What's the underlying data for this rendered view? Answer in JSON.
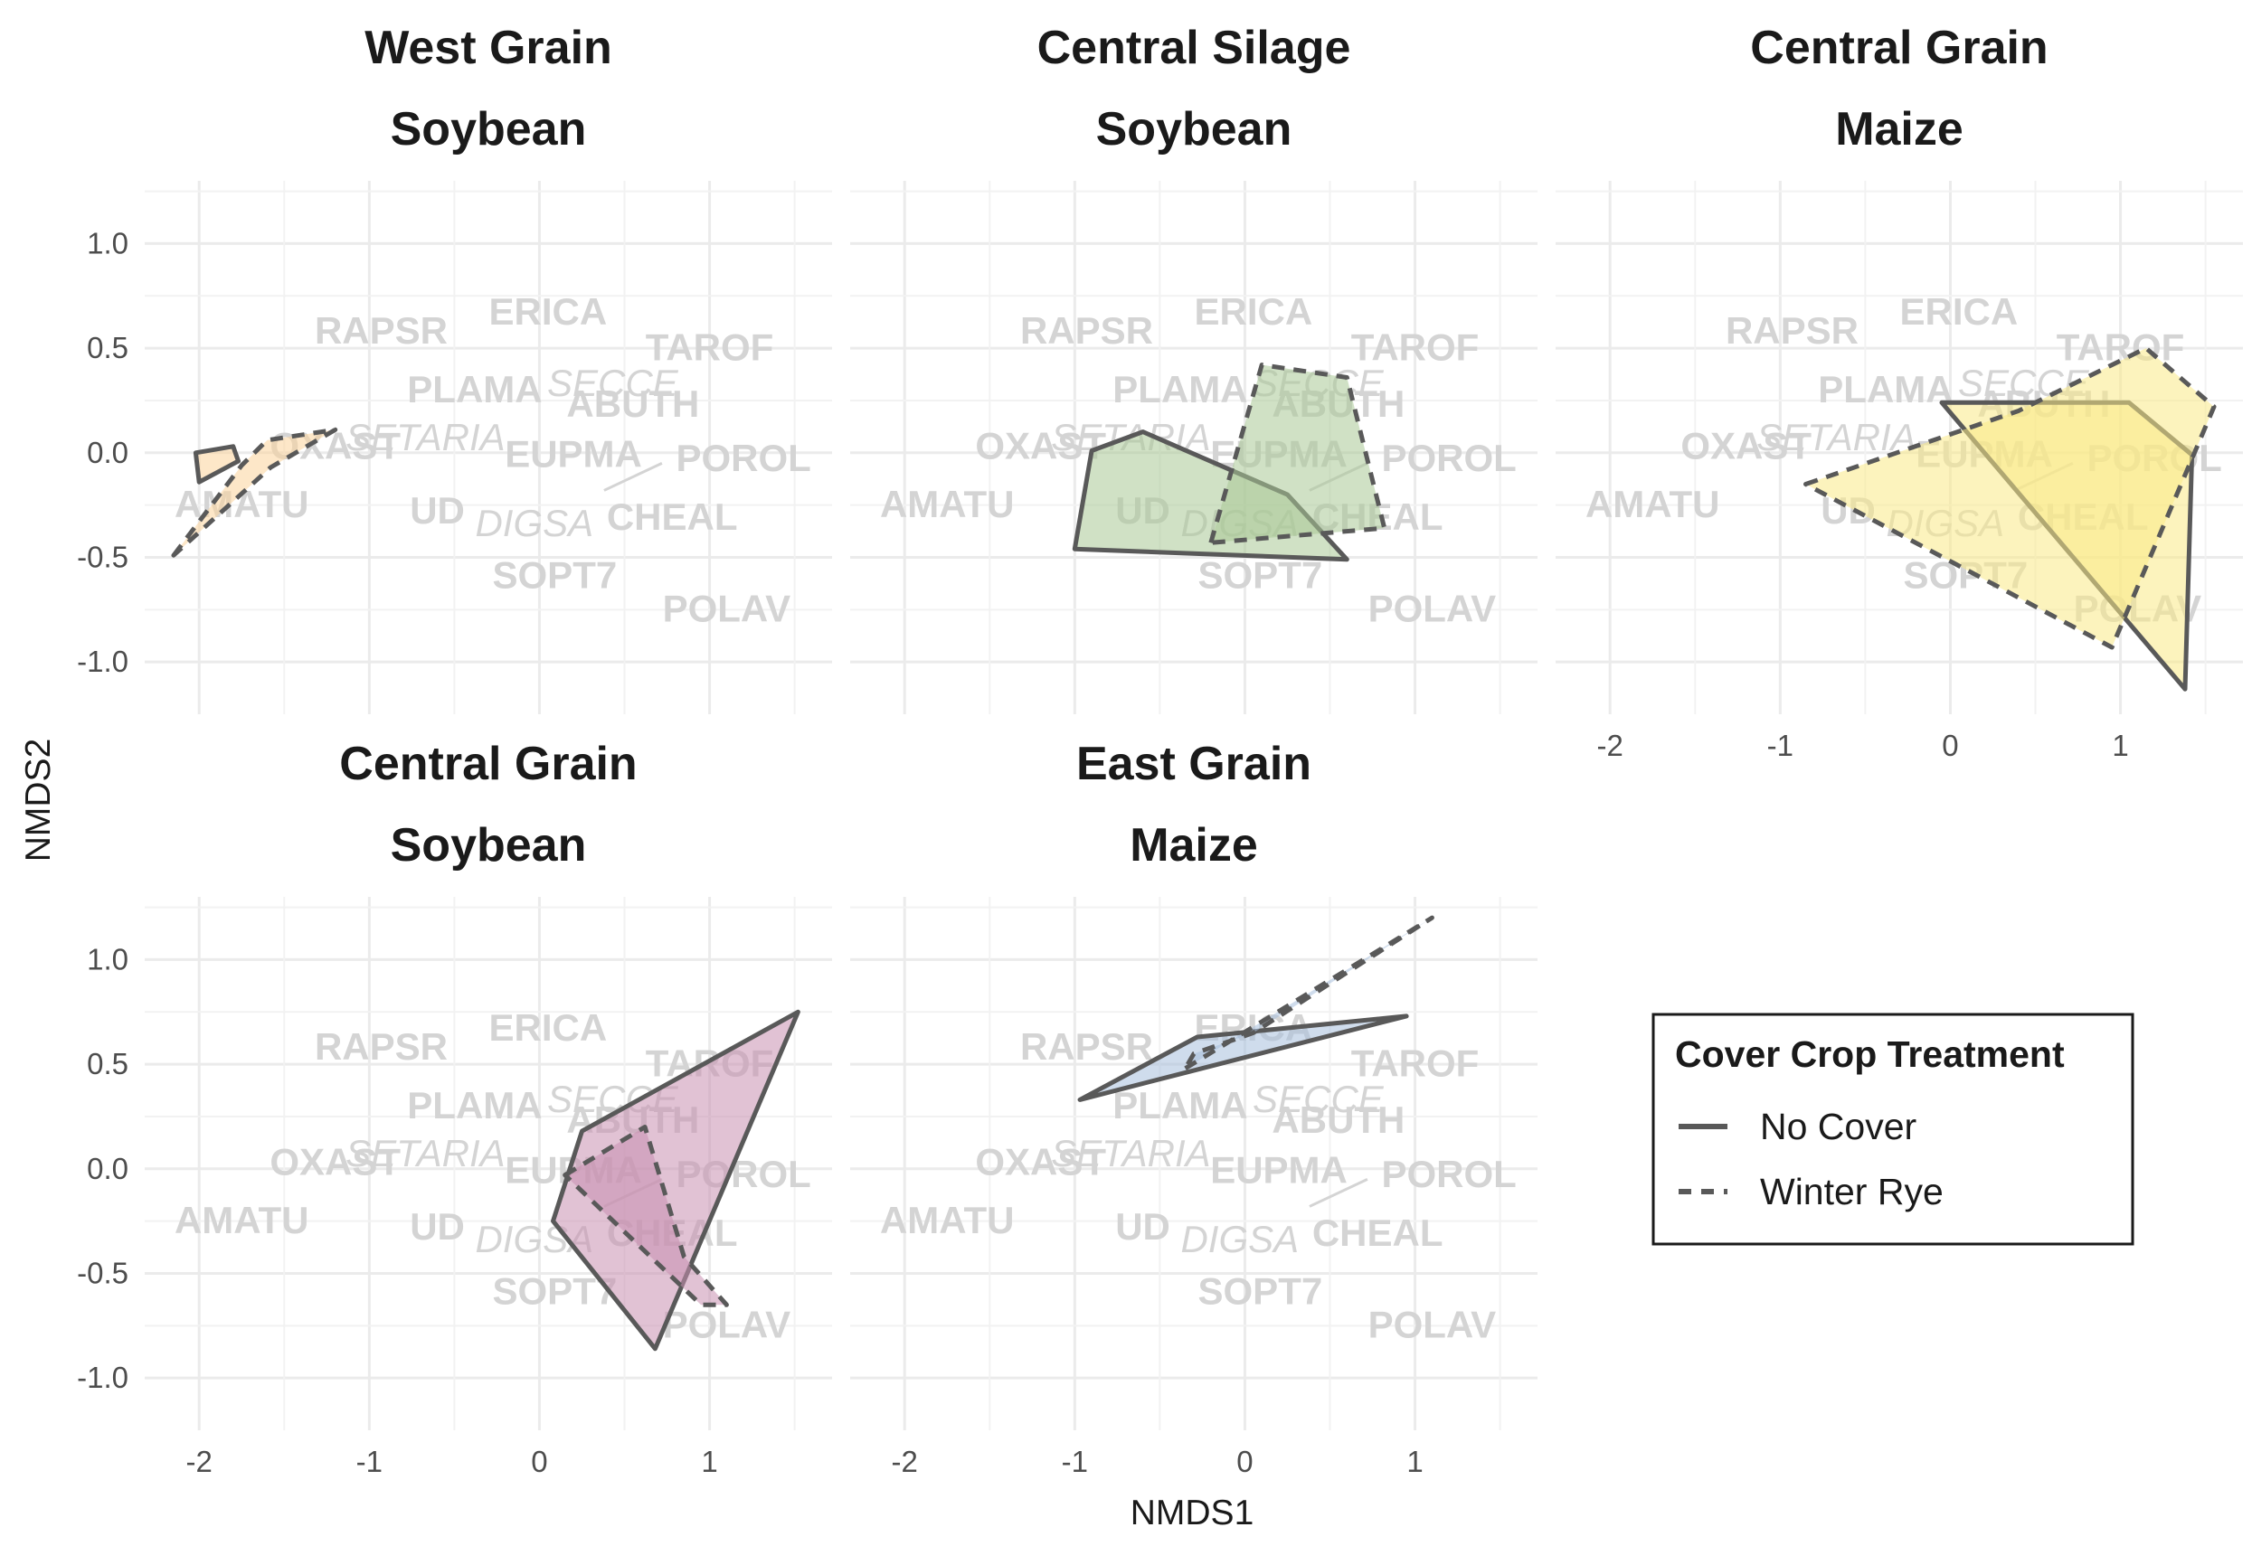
{
  "chart_data": {
    "type": "scatter",
    "subtype": "nmds-hull-facets",
    "xlabel": "NMDS1",
    "ylabel": "NMDS2",
    "xlim": [
      -2.32,
      1.72
    ],
    "ylim": [
      -1.25,
      1.3
    ],
    "x_ticks": [
      -2,
      -1,
      0,
      1
    ],
    "x_tick_labels": [
      "-2",
      "-1",
      "0",
      "1"
    ],
    "y_ticks": [
      1.0,
      0.5,
      0.0,
      -0.5,
      -1.0
    ],
    "y_tick_labels": [
      "1.0",
      "0.5",
      "0.0",
      "-0.5",
      "-1.0"
    ],
    "grid": true,
    "species": [
      {
        "label": "ERICA",
        "x": 0.05,
        "y": 0.66,
        "italic": false
      },
      {
        "label": "RAPSR",
        "x": -0.93,
        "y": 0.57,
        "italic": false
      },
      {
        "label": "TAROF",
        "x": 1.0,
        "y": 0.49,
        "italic": false
      },
      {
        "label": "SECCE",
        "x": 0.43,
        "y": 0.32,
        "italic": true
      },
      {
        "label": "PLAMA",
        "x": -0.38,
        "y": 0.29,
        "italic": false
      },
      {
        "label": "ABUTH",
        "x": 0.55,
        "y": 0.22,
        "italic": false
      },
      {
        "label": "SETARIA",
        "x": -0.67,
        "y": 0.06,
        "italic": true
      },
      {
        "label": "OXAST",
        "x": -1.2,
        "y": 0.02,
        "italic": false
      },
      {
        "label": "EUPMA",
        "x": 0.2,
        "y": -0.02,
        "italic": false
      },
      {
        "label": "POROL",
        "x": 1.2,
        "y": -0.04,
        "italic": false
      },
      {
        "label": "AMATU",
        "x": -1.75,
        "y": -0.26,
        "italic": false
      },
      {
        "label": "UD",
        "x": -0.6,
        "y": -0.29,
        "italic": false
      },
      {
        "label": "CHEAL",
        "x": 0.78,
        "y": -0.32,
        "italic": false
      },
      {
        "label": "DIGSA",
        "x": -0.03,
        "y": -0.35,
        "italic": true
      },
      {
        "label": "SOPT7",
        "x": 0.09,
        "y": -0.6,
        "italic": false
      },
      {
        "label": "POLAV",
        "x": 1.1,
        "y": -0.76,
        "italic": false
      }
    ],
    "facets": [
      {
        "title_line1": "West Grain",
        "title_line2": "Soybean",
        "color": "#fbd39b",
        "no_cover": [
          [
            -2.0,
            -0.14
          ],
          [
            -2.02,
            0.0
          ],
          [
            -1.8,
            0.03
          ],
          [
            -1.77,
            -0.04
          ]
        ],
        "winter_rye": [
          [
            -2.15,
            -0.49
          ],
          [
            -1.75,
            -0.06
          ],
          [
            -1.6,
            0.06
          ],
          [
            -1.2,
            0.11
          ],
          [
            -1.58,
            -0.07
          ]
        ]
      },
      {
        "title_line1": "Central Silage",
        "title_line2": "Soybean",
        "color": "#a9c895",
        "no_cover": [
          [
            -1.0,
            -0.46
          ],
          [
            -0.9,
            0.01
          ],
          [
            -0.6,
            0.1
          ],
          [
            0.25,
            -0.2
          ],
          [
            0.6,
            -0.51
          ]
        ],
        "winter_rye": [
          [
            -0.2,
            -0.43
          ],
          [
            0.1,
            0.42
          ],
          [
            0.6,
            0.36
          ],
          [
            0.82,
            -0.36
          ]
        ]
      },
      {
        "title_line1": "Central Grain",
        "title_line2": "Maize",
        "color": "#f9ea86",
        "no_cover": [
          [
            -0.05,
            0.24
          ],
          [
            1.05,
            0.24
          ],
          [
            1.42,
            -0.01
          ],
          [
            1.38,
            -1.13
          ]
        ],
        "winter_rye": [
          [
            -0.85,
            -0.15
          ],
          [
            0.4,
            0.2
          ],
          [
            1.15,
            0.5
          ],
          [
            1.55,
            0.22
          ],
          [
            0.95,
            -0.93
          ]
        ]
      },
      {
        "title_line1": "Central Grain",
        "title_line2": "Soybean",
        "color": "#c98fb1",
        "no_cover": [
          [
            0.08,
            -0.25
          ],
          [
            0.25,
            0.18
          ],
          [
            1.52,
            0.75
          ],
          [
            0.68,
            -0.86
          ]
        ],
        "winter_rye": [
          [
            0.15,
            -0.03
          ],
          [
            0.62,
            0.2
          ],
          [
            0.85,
            -0.42
          ],
          [
            1.1,
            -0.65
          ],
          [
            0.95,
            -0.65
          ]
        ]
      },
      {
        "title_line1": "East Grain",
        "title_line2": "Maize",
        "color": "#a7bfdd",
        "no_cover": [
          [
            -0.97,
            0.33
          ],
          [
            -0.28,
            0.63
          ],
          [
            0.95,
            0.73
          ],
          [
            -0.35,
            0.46
          ]
        ],
        "winter_rye": [
          [
            -0.35,
            0.48
          ],
          [
            1.1,
            1.2
          ],
          [
            0.05,
            0.65
          ],
          [
            -0.3,
            0.55
          ]
        ]
      }
    ],
    "legend": {
      "title": "Cover Crop Treatment",
      "entries": [
        "No Cover",
        "Winter Rye"
      ],
      "placement": "bottom-right"
    },
    "hull_stroke_color": "#595959"
  }
}
